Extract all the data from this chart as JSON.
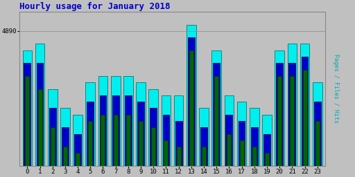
{
  "title": "Hourly usage for January 2018",
  "ylabel": "Pages / Files / Hits",
  "hours": [
    0,
    1,
    2,
    3,
    4,
    5,
    6,
    7,
    8,
    9,
    10,
    11,
    12,
    13,
    14,
    15,
    16,
    17,
    18,
    19,
    20,
    21,
    22,
    23
  ],
  "pages": [
    4820,
    4800,
    4740,
    4710,
    4700,
    4750,
    4760,
    4760,
    4760,
    4750,
    4740,
    4720,
    4710,
    4860,
    4710,
    4820,
    4730,
    4720,
    4710,
    4700,
    4820,
    4820,
    4830,
    4750
  ],
  "files": [
    4840,
    4840,
    4770,
    4740,
    4730,
    4780,
    4790,
    4790,
    4790,
    4780,
    4770,
    4760,
    4750,
    4880,
    4740,
    4840,
    4760,
    4750,
    4740,
    4730,
    4840,
    4840,
    4850,
    4780
  ],
  "hits": [
    4860,
    4870,
    4800,
    4770,
    4760,
    4810,
    4820,
    4820,
    4820,
    4810,
    4800,
    4790,
    4790,
    4900,
    4770,
    4860,
    4790,
    4780,
    4770,
    4760,
    4860,
    4870,
    4870,
    4810
  ],
  "color_pages": "#006600",
  "color_files": "#0000cc",
  "color_hits": "#00eeee",
  "color_edge_pages": "#003300",
  "color_edge_files": "#000044",
  "color_edge_hits": "#007777",
  "color_bg": "#c0c0c0",
  "color_title": "#0000cc",
  "color_ylabel": "#00aaaa",
  "ymin": 4680,
  "ymax": 4920,
  "ytick_val": 4890,
  "bar_width": 0.75,
  "title_fontsize": 9
}
